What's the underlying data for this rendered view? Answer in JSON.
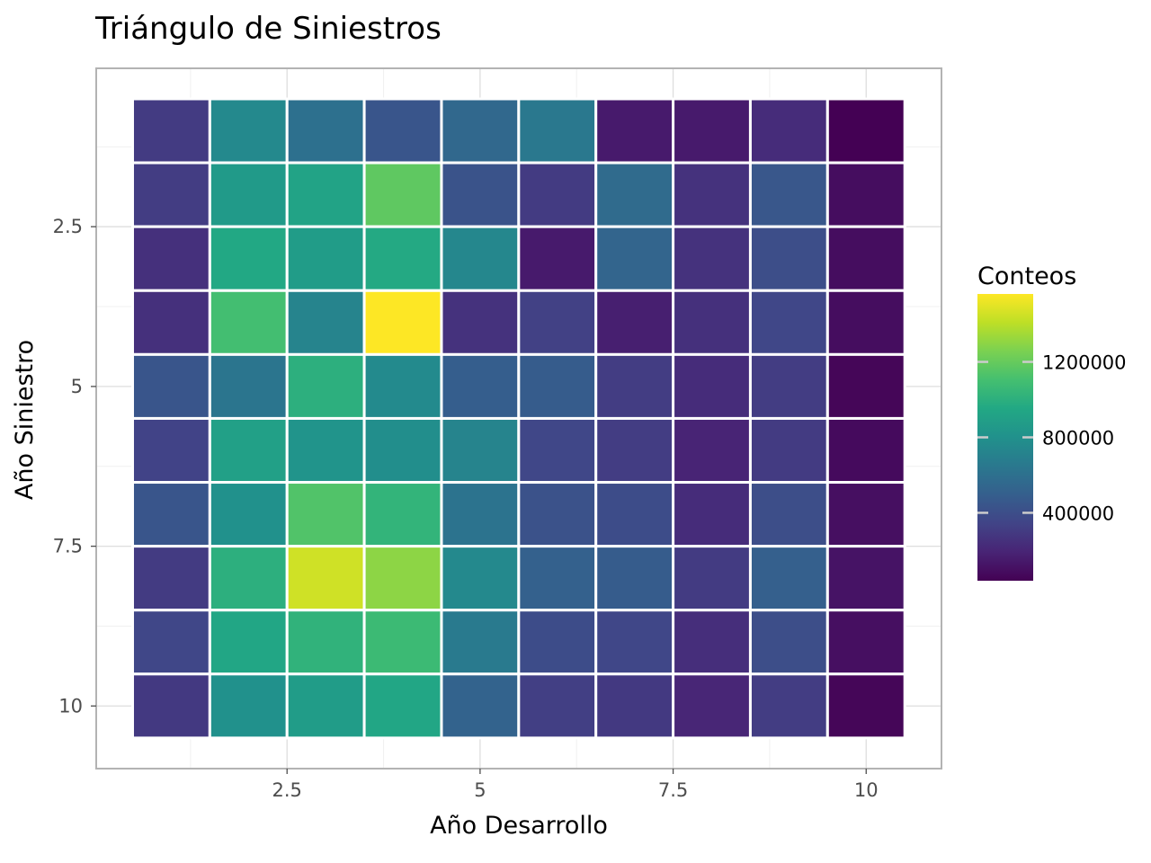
{
  "chart_data": {
    "type": "heatmap",
    "title": "Triángulo de Siniestros",
    "xlabel": "Año Desarrollo",
    "ylabel": "Año Siniestro",
    "legend_title": "Conteos",
    "legend_position": "right",
    "grid": true,
    "colormap": "viridis",
    "x_categories": [
      1,
      2,
      3,
      4,
      5,
      6,
      7,
      8,
      9,
      10
    ],
    "y_categories": [
      1,
      2,
      3,
      4,
      5,
      6,
      7,
      8,
      9,
      10
    ],
    "x_ticks": [
      {
        "value": 2.5,
        "label": "2.5"
      },
      {
        "value": 5,
        "label": "5"
      },
      {
        "value": 7.5,
        "label": "7.5"
      },
      {
        "value": 10,
        "label": "10"
      }
    ],
    "y_ticks": [
      {
        "value": 2.5,
        "label": "2.5"
      },
      {
        "value": 5,
        "label": "5"
      },
      {
        "value": 7.5,
        "label": "7.5"
      },
      {
        "value": 10,
        "label": "10"
      }
    ],
    "xlim": [
      0.5,
      10.5
    ],
    "ylim": [
      0.5,
      10.5
    ],
    "color_range": [
      40000,
      1560000
    ],
    "legend_ticks": [
      {
        "value": 400000,
        "label": "400000"
      },
      {
        "value": 800000,
        "label": "800000"
      },
      {
        "value": 1200000,
        "label": "1200000"
      }
    ],
    "values": [
      [
        300000,
        750000,
        600000,
        440000,
        550000,
        650000,
        150000,
        150000,
        230000,
        40000
      ],
      [
        310000,
        860000,
        920000,
        1180000,
        430000,
        300000,
        570000,
        260000,
        450000,
        90000
      ],
      [
        250000,
        950000,
        870000,
        960000,
        740000,
        150000,
        530000,
        260000,
        400000,
        90000
      ],
      [
        250000,
        1100000,
        720000,
        1560000,
        260000,
        330000,
        170000,
        250000,
        360000,
        90000
      ],
      [
        440000,
        630000,
        1000000,
        760000,
        490000,
        480000,
        310000,
        230000,
        310000,
        60000
      ],
      [
        340000,
        900000,
        820000,
        780000,
        720000,
        360000,
        310000,
        190000,
        300000,
        80000
      ],
      [
        440000,
        800000,
        1140000,
        1030000,
        620000,
        420000,
        390000,
        230000,
        400000,
        100000
      ],
      [
        300000,
        1000000,
        1450000,
        1300000,
        750000,
        510000,
        480000,
        300000,
        500000,
        120000
      ],
      [
        360000,
        940000,
        1020000,
        1070000,
        660000,
        390000,
        360000,
        240000,
        400000,
        100000
      ],
      [
        290000,
        800000,
        870000,
        940000,
        520000,
        320000,
        290000,
        200000,
        310000,
        60000
      ]
    ]
  }
}
